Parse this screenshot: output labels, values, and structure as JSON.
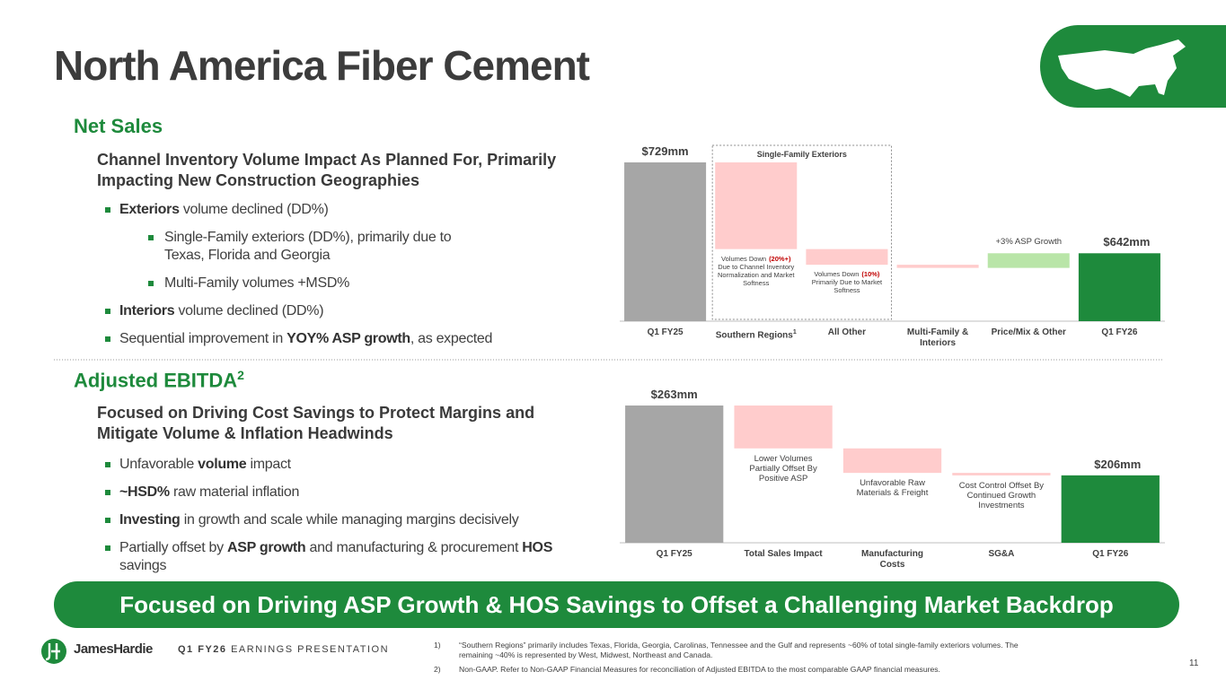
{
  "header": {
    "title": "North America Fiber Cement"
  },
  "sections": [
    {
      "heading": "Net Sales",
      "subheading": "Channel Inventory Volume Impact As Planned For, Primarily Impacting New Construction Geographies",
      "bullets": [
        {
          "level": 1,
          "segments": [
            {
              "text": "Exteriors",
              "bold": true
            },
            {
              "text": " volume declined (DD%)"
            }
          ]
        },
        {
          "level": 2,
          "segments": [
            {
              "text": "Single-Family exteriors (DD%), primarily due to Texas, Florida and Georgia"
            }
          ]
        },
        {
          "level": 2,
          "segments": [
            {
              "text": "Multi-Family volumes +MSD%"
            }
          ]
        },
        {
          "level": 1,
          "segments": [
            {
              "text": "Interiors",
              "bold": true
            },
            {
              "text": " volume declined (DD%)"
            }
          ]
        },
        {
          "level": 1,
          "segments": [
            {
              "text": "Sequential improvement in "
            },
            {
              "text": "YOY% ASP growth",
              "bold": true
            },
            {
              "text": ", as expected"
            }
          ]
        }
      ]
    },
    {
      "heading": "Adjusted EBITDA",
      "heading_sup": "2",
      "subheading": "Focused on Driving Cost Savings to Protect Margins and Mitigate Volume & Inflation Headwinds",
      "bullets": [
        {
          "level": 1,
          "segments": [
            {
              "text": "Unfavorable "
            },
            {
              "text": "volume",
              "bold": true
            },
            {
              "text": " impact"
            }
          ]
        },
        {
          "level": 1,
          "segments": [
            {
              "text": "~HSD%",
              "bold": true
            },
            {
              "text": " raw material inflation"
            }
          ]
        },
        {
          "level": 1,
          "segments": [
            {
              "text": "Investing",
              "bold": true
            },
            {
              "text": " in growth and scale while managing margins decisively"
            }
          ]
        },
        {
          "level": 1,
          "segments": [
            {
              "text": "Partially offset by "
            },
            {
              "text": "ASP growth",
              "bold": true
            },
            {
              "text": " and manufacturing & procurement "
            },
            {
              "text": "HOS",
              "bold": true
            },
            {
              "text": " savings"
            }
          ]
        }
      ]
    }
  ],
  "chart_data": [
    {
      "type": "waterfall",
      "categories": [
        "Q1 FY25",
        "Southern Regions",
        "All Other",
        "Multi-Family & Interiors",
        "Price/Mix & Other",
        "Q1 FY26"
      ],
      "category_sups": [
        null,
        "1",
        null,
        null,
        null,
        null
      ],
      "measure": [
        "absolute",
        "relative",
        "relative",
        "relative",
        "relative",
        "absolute"
      ],
      "values": [
        729,
        -83,
        -15,
        -3,
        14,
        642
      ],
      "value_labels": [
        "$729mm",
        null,
        null,
        null,
        null,
        "$642mm"
      ],
      "colors": [
        "#a6a6a6",
        "#ffcccc",
        "#ffcccc",
        "#ffcccc",
        "#b9e5a8",
        "#1e8a3c"
      ],
      "ylim": [
        577,
        729
      ],
      "group_label": "Single-Family Exteriors",
      "annotations": [
        null,
        {
          "text": "Volumes Down",
          "highlight": "(20%+)",
          "detail": "Due to Channel Inventory Normalization and Market Softness"
        },
        {
          "text": "Volumes Down",
          "highlight": "(10%)",
          "detail": "Primarily Due to Market Softness"
        },
        null,
        {
          "text": "+3% ASP Growth"
        },
        null
      ]
    },
    {
      "type": "waterfall",
      "categories": [
        "Q1 FY25",
        "Total Sales Impact",
        "Manufacturing Costs",
        "SG&A",
        "Q1 FY26"
      ],
      "measure": [
        "absolute",
        "relative",
        "relative",
        "relative",
        "absolute"
      ],
      "values": [
        263,
        -35,
        -20,
        -2,
        206
      ],
      "value_labels": [
        "$263mm",
        null,
        null,
        null,
        "$206mm"
      ],
      "colors": [
        "#a6a6a6",
        "#ffcccc",
        "#ffcccc",
        "#ffcccc",
        "#1e8a3c"
      ],
      "ylim": [
        151,
        263
      ],
      "annotations": [
        null,
        {
          "text": "Lower Volumes Partially Offset By Positive ASP"
        },
        {
          "text": "Unfavorable Raw Materials & Freight"
        },
        {
          "text": "Cost Control Offset By Continued Growth Investments"
        },
        null
      ]
    }
  ],
  "banner": "Focused on Driving ASP Growth & HOS Savings to Offset a Challenging Market Backdrop",
  "footer": {
    "brand": "JamesHardie",
    "edition": "Q1 FY26",
    "presentation": "EARNINGS PRESENTATION",
    "footnotes": [
      {
        "number": "1)",
        "text": "“Southern Regions” primarily includes Texas, Florida, Georgia, Carolinas, Tennessee and the Gulf and represents ~60% of total single-family exteriors volumes. The remaining ~40% is represented by West, Midwest, Northeast and Canada."
      },
      {
        "number": "2)",
        "text": "Non-GAAP. Refer to Non-GAAP Financial Measures  for reconciliation of Adjusted EBITDA to the most comparable GAAP financial measures."
      }
    ],
    "page": "11"
  }
}
